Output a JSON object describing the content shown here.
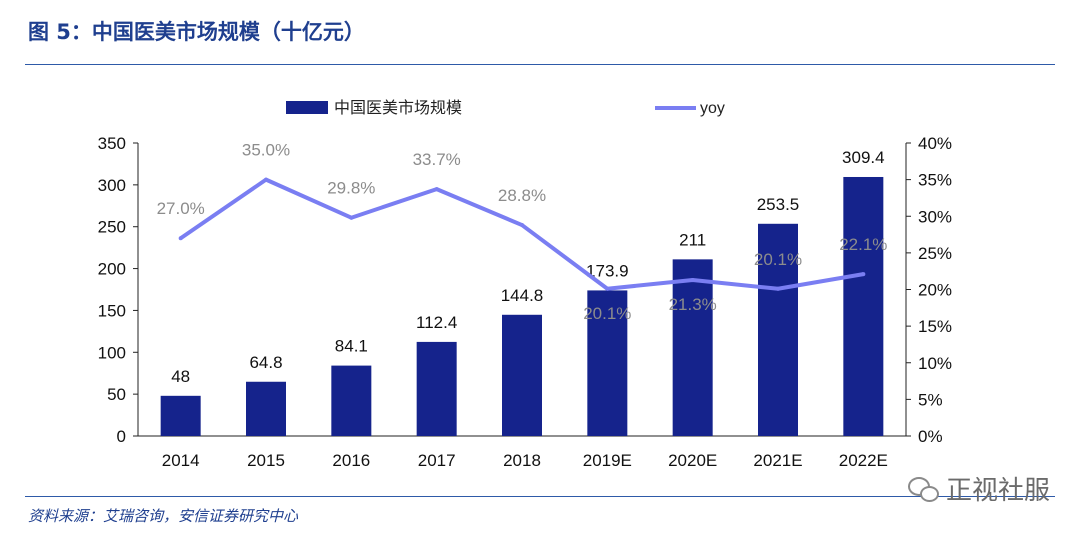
{
  "figure": {
    "title": "图 5：中国医美市场规模（十亿元）",
    "source": "资料来源：艾瑞咨询，安信证券研究中心"
  },
  "watermark": {
    "text": "正视社服",
    "icon": "wechat-icon"
  },
  "colors": {
    "bar": "#15238c",
    "line": "#7a7ef2",
    "label": "#8c8c8c",
    "axis": "#222222",
    "rule": "#2e5aa8",
    "title": "#1f3f8f"
  },
  "chart_data": {
    "type": "bar+line",
    "categories": [
      "2014",
      "2015",
      "2016",
      "2017",
      "2018",
      "2019E",
      "2020E",
      "2021E",
      "2022E"
    ],
    "series": [
      {
        "name": "中国医美市场规模",
        "kind": "bar",
        "axis": "left",
        "values": [
          48,
          64.8,
          84.1,
          112.4,
          144.8,
          173.9,
          211,
          253.5,
          309.4
        ],
        "labels": [
          "48",
          "64.8",
          "84.1",
          "112.4",
          "144.8",
          "173.9",
          "211",
          "253.5",
          "309.4"
        ]
      },
      {
        "name": "yoy",
        "kind": "line",
        "axis": "right",
        "values": [
          27.0,
          35.0,
          29.8,
          33.7,
          28.8,
          20.1,
          21.3,
          20.1,
          22.1
        ],
        "labels": [
          "27.0%",
          "35.0%",
          "29.8%",
          "33.7%",
          "28.8%",
          "20.1%",
          "21.3%",
          "20.1%",
          "22.1%"
        ]
      }
    ],
    "y_left": {
      "min": 0,
      "max": 350,
      "ticks": [
        "0",
        "50",
        "100",
        "150",
        "200",
        "250",
        "300",
        "350"
      ]
    },
    "y_right": {
      "min": 0,
      "max": 40,
      "ticks": [
        "0%",
        "5%",
        "10%",
        "15%",
        "20%",
        "25%",
        "30%",
        "35%",
        "40%"
      ]
    },
    "legend": {
      "position": "top",
      "items": [
        "中国医美市场规模",
        "yoy"
      ]
    }
  }
}
